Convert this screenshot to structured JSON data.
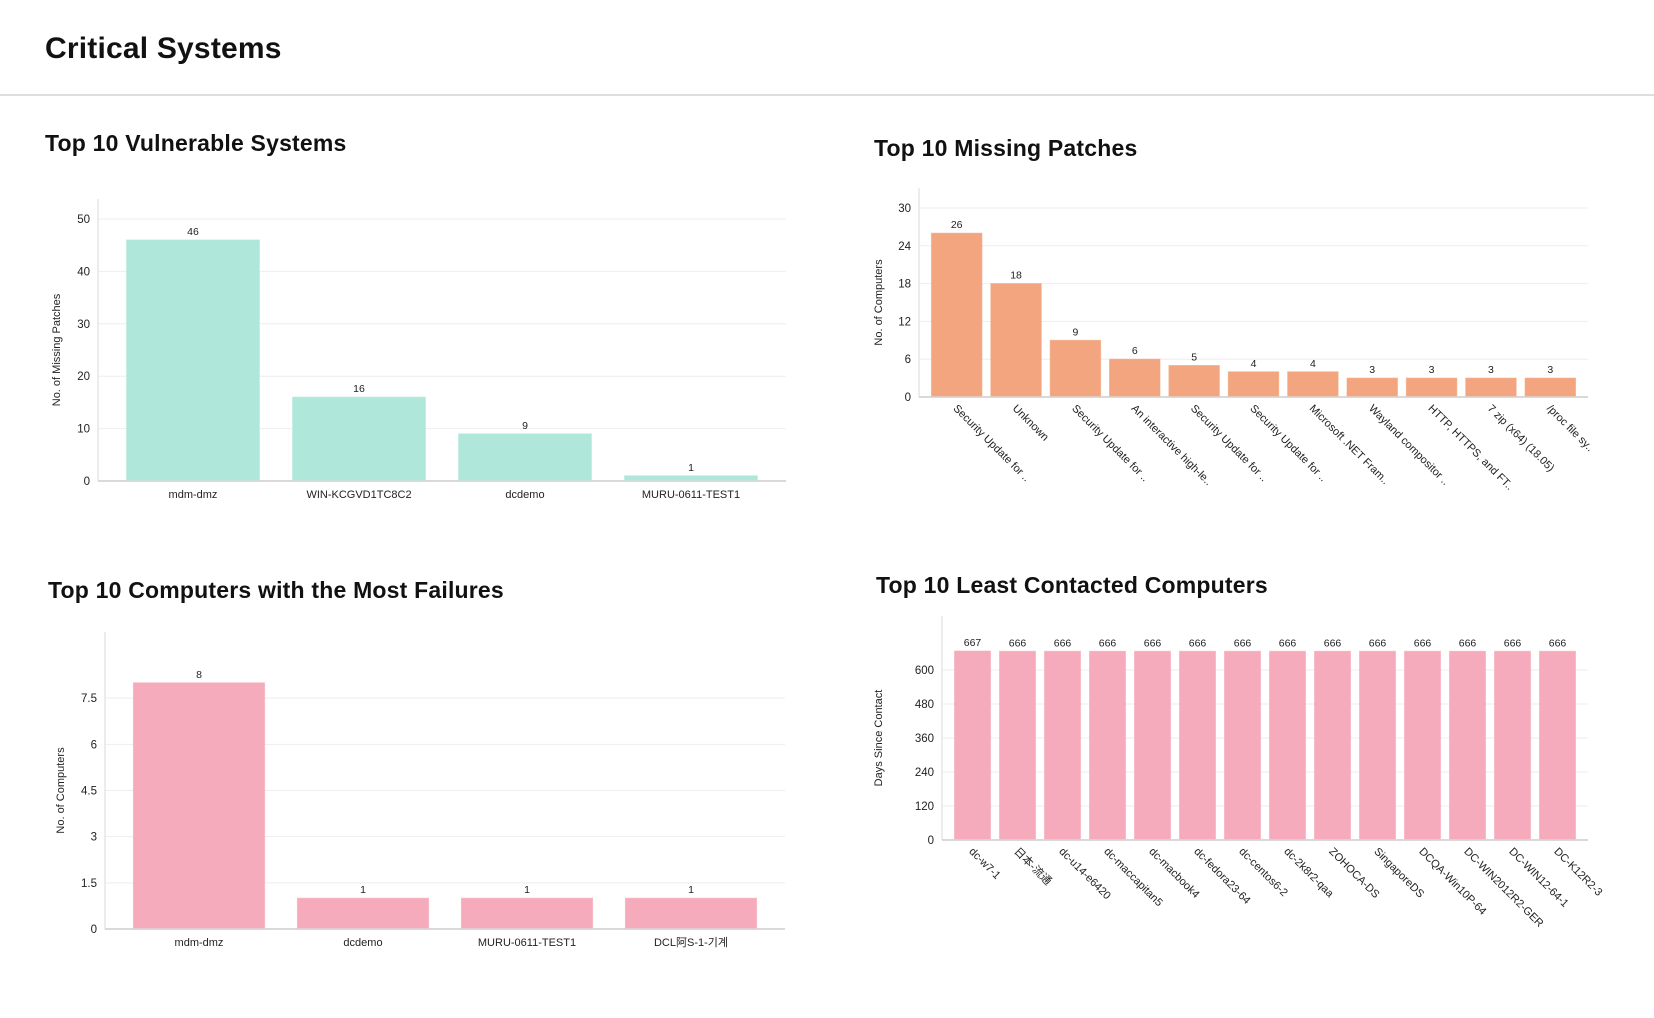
{
  "header": {
    "title": "Critical Systems"
  },
  "panels": {
    "vulnerable": {
      "title": "Top 10 Vulnerable Systems"
    },
    "missing": {
      "title": "Top 10 Missing Patches"
    },
    "failures": {
      "title": "Top 10 Computers with the Most Failures"
    },
    "contacted": {
      "title": "Top 10 Least Contacted Computers"
    }
  },
  "colors": {
    "teal": "#afe7da",
    "orange": "#f2a57e",
    "pink": "#f5abbb",
    "grid": "#eeeeee",
    "axis": "#d9d9d9"
  },
  "chart_data": [
    {
      "id": "vulnerable",
      "type": "bar",
      "title": "Top 10 Vulnerable Systems",
      "xlabel": "",
      "ylabel": "No. of Missing Patches",
      "categories": [
        "mdm-dmz",
        "WIN-KCGVD1TC8C2",
        "dcdemo",
        "MURU-0611-TEST1"
      ],
      "values": [
        46,
        16,
        9,
        1
      ],
      "ylim": [
        0,
        50
      ],
      "yticks": [
        0,
        10,
        20,
        30,
        40,
        50
      ],
      "grid": true,
      "label_rotation": 0,
      "color": "#afe7da"
    },
    {
      "id": "missing",
      "type": "bar",
      "title": "Top 10 Missing Patches",
      "xlabel": "",
      "ylabel": "No. of Computers",
      "categories": [
        "Security Update for ..",
        "Unknown",
        "Security Update for ..",
        "An interactive high-le..",
        "Security Update for ..",
        "Security Update for ..",
        "Microsoft .NET Fram..",
        "Wayland compositor ..",
        "HTTP, HTTPS, and FT..",
        "7 zip (x64) (18.05)",
        "/proc file sy.."
      ],
      "values": [
        26,
        18,
        9,
        6,
        5,
        4,
        4,
        3,
        3,
        3,
        3
      ],
      "ylim": [
        0,
        30
      ],
      "yticks": [
        0,
        6,
        12,
        18,
        24,
        30
      ],
      "grid": true,
      "label_rotation": 45,
      "color": "#f2a57e"
    },
    {
      "id": "failures",
      "type": "bar",
      "title": "Top 10 Computers with the Most Failures",
      "xlabel": "",
      "ylabel": "No. of Computers",
      "categories": [
        "mdm-dmz",
        "dcdemo",
        "MURU-0611-TEST1",
        "DCL阿S-1-기계"
      ],
      "values": [
        8,
        1,
        1,
        1
      ],
      "ylim": [
        0,
        9
      ],
      "yticks": [
        0,
        1.5,
        3,
        4.5,
        6,
        7.5
      ],
      "grid": true,
      "label_rotation": 0,
      "color": "#f5abbb"
    },
    {
      "id": "contacted",
      "type": "bar",
      "title": "Top 10 Least Contacted Computers",
      "xlabel": "",
      "ylabel": "Days Since Contact",
      "categories": [
        "dc-w7-1",
        "日本-流通",
        "dc-u14-e6420",
        "dc-maccapitan5",
        "dc-macbook4",
        "dc-fedora23-64",
        "dc-centos6-2",
        "dc-2k8r2-qaa",
        "ZOHOCA-DS",
        "SingaporeDS",
        "DCQA-Win10P-64",
        "DC-WIN2012R2-GER",
        "DC-WIN12-64-1",
        "DC-K12R2-3"
      ],
      "values": [
        667,
        666,
        666,
        666,
        666,
        666,
        666,
        666,
        666,
        666,
        666,
        666,
        666,
        666
      ],
      "ylim": [
        0,
        720
      ],
      "yticks": [
        0,
        120,
        240,
        360,
        480,
        600
      ],
      "grid": true,
      "label_rotation": 45,
      "color": "#f5abbb"
    }
  ]
}
